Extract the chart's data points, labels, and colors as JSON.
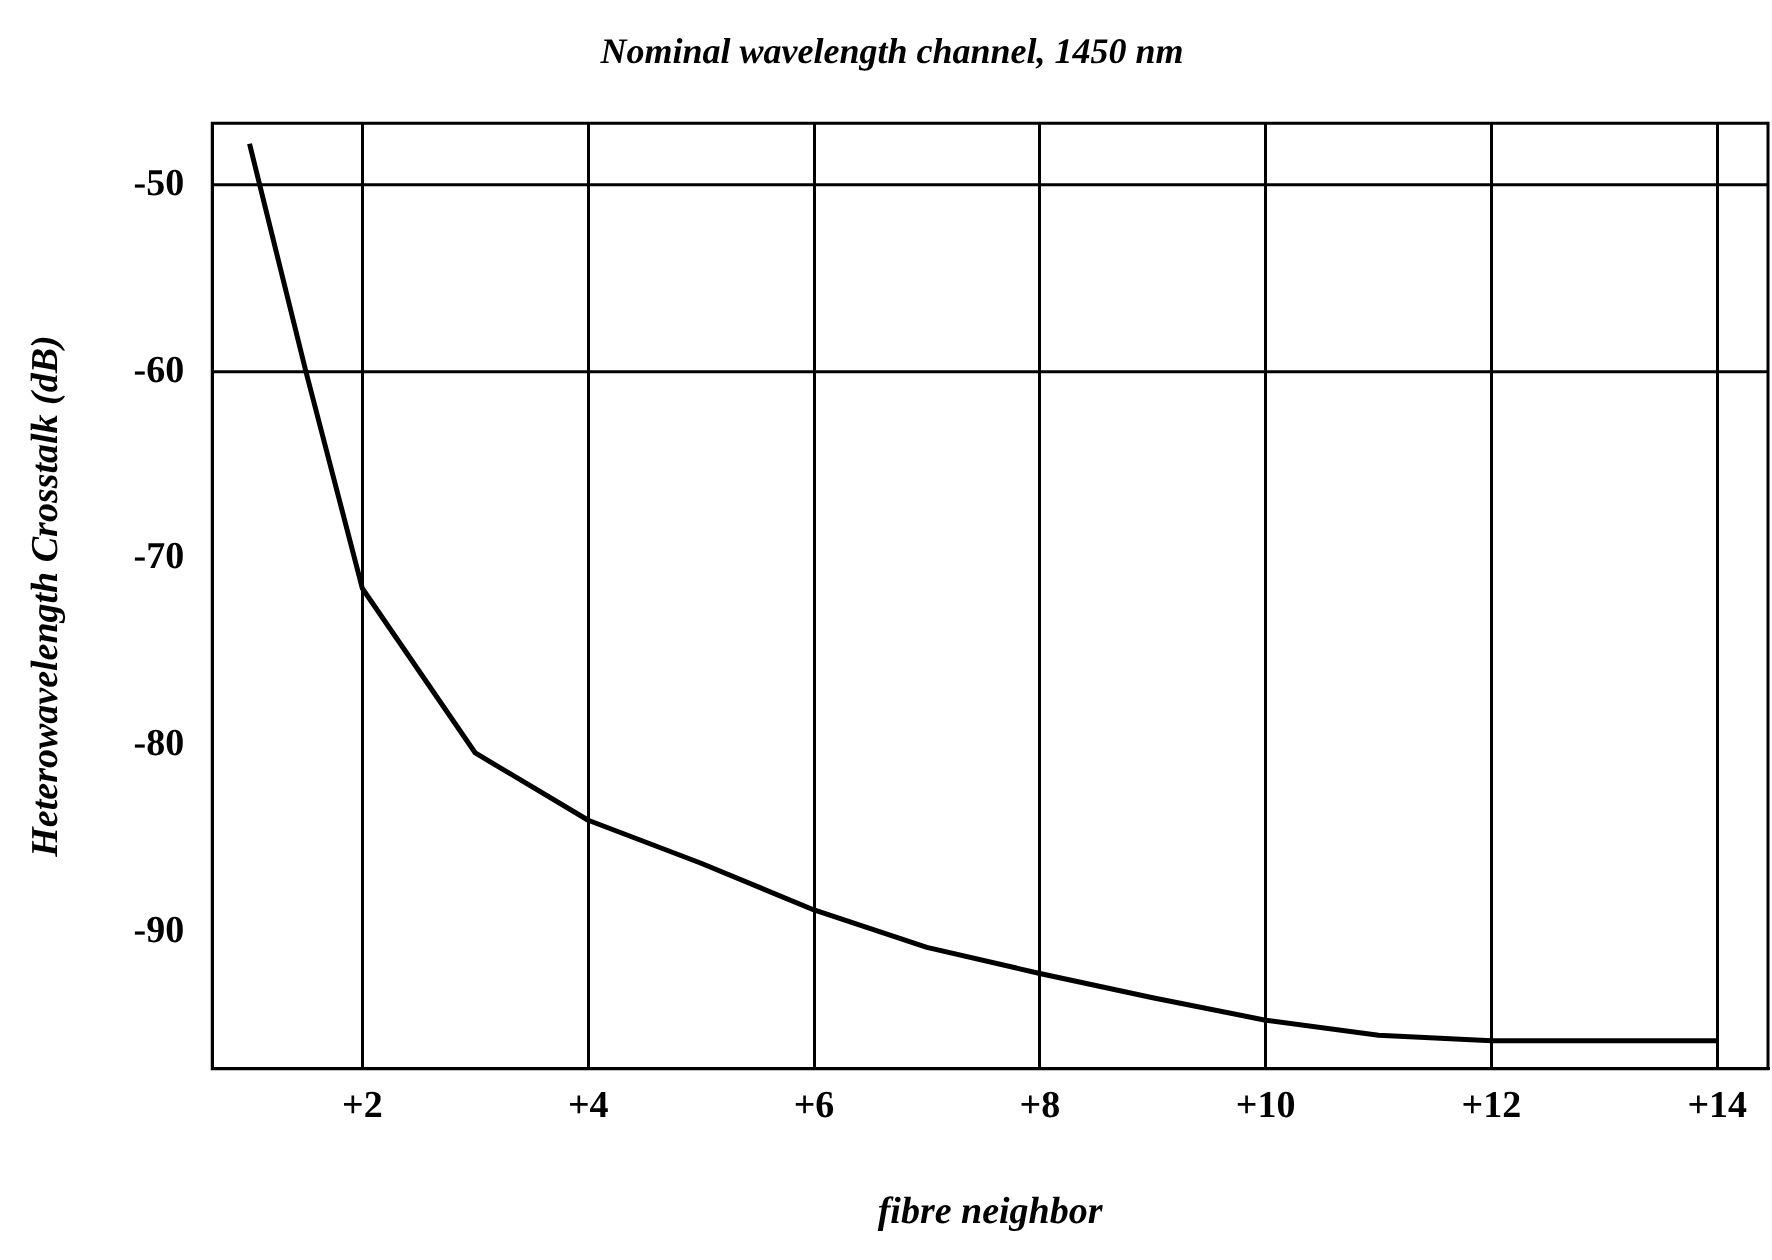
{
  "chart_data": {
    "type": "line",
    "title": "Nominal wavelength channel, 1450 nm",
    "xlabel": "fibre neighbor",
    "ylabel": "Heterowavelength Crosstalk (dB)",
    "x": [
      1,
      1.5,
      2,
      3,
      4,
      5,
      6,
      7,
      8,
      9,
      10,
      11,
      12,
      13,
      14
    ],
    "series": [
      {
        "color": "#000000",
        "values": [
          -47.8,
          -60,
          -71.6,
          -80.4,
          -84,
          -86.3,
          -88.8,
          -90.8,
          -92.2,
          -93.5,
          -94.7,
          -95.5,
          -95.8,
          -95.8,
          -95.8
        ]
      }
    ],
    "xlim": [
      0.67,
      14.45
    ],
    "xticks": [
      {
        "value": 2,
        "label": "+2"
      },
      {
        "value": 4,
        "label": "+4"
      },
      {
        "value": 6,
        "label": "+6"
      },
      {
        "value": 8,
        "label": "+8"
      },
      {
        "value": 10,
        "label": "+10"
      },
      {
        "value": 12,
        "label": "+12"
      },
      {
        "value": 14,
        "label": "+14"
      }
    ],
    "ylim": [
      -97.3,
      -46.7
    ],
    "yticks": [
      -50,
      -60,
      -70,
      -80,
      -90
    ],
    "grid": "x",
    "legend": false,
    "marker": "none",
    "line_style": "solid",
    "ref_lines": [
      {
        "axis": "y",
        "value": -50,
        "color": "#000000"
      },
      {
        "axis": "y",
        "value": -60,
        "color": "#000000"
      }
    ]
  }
}
